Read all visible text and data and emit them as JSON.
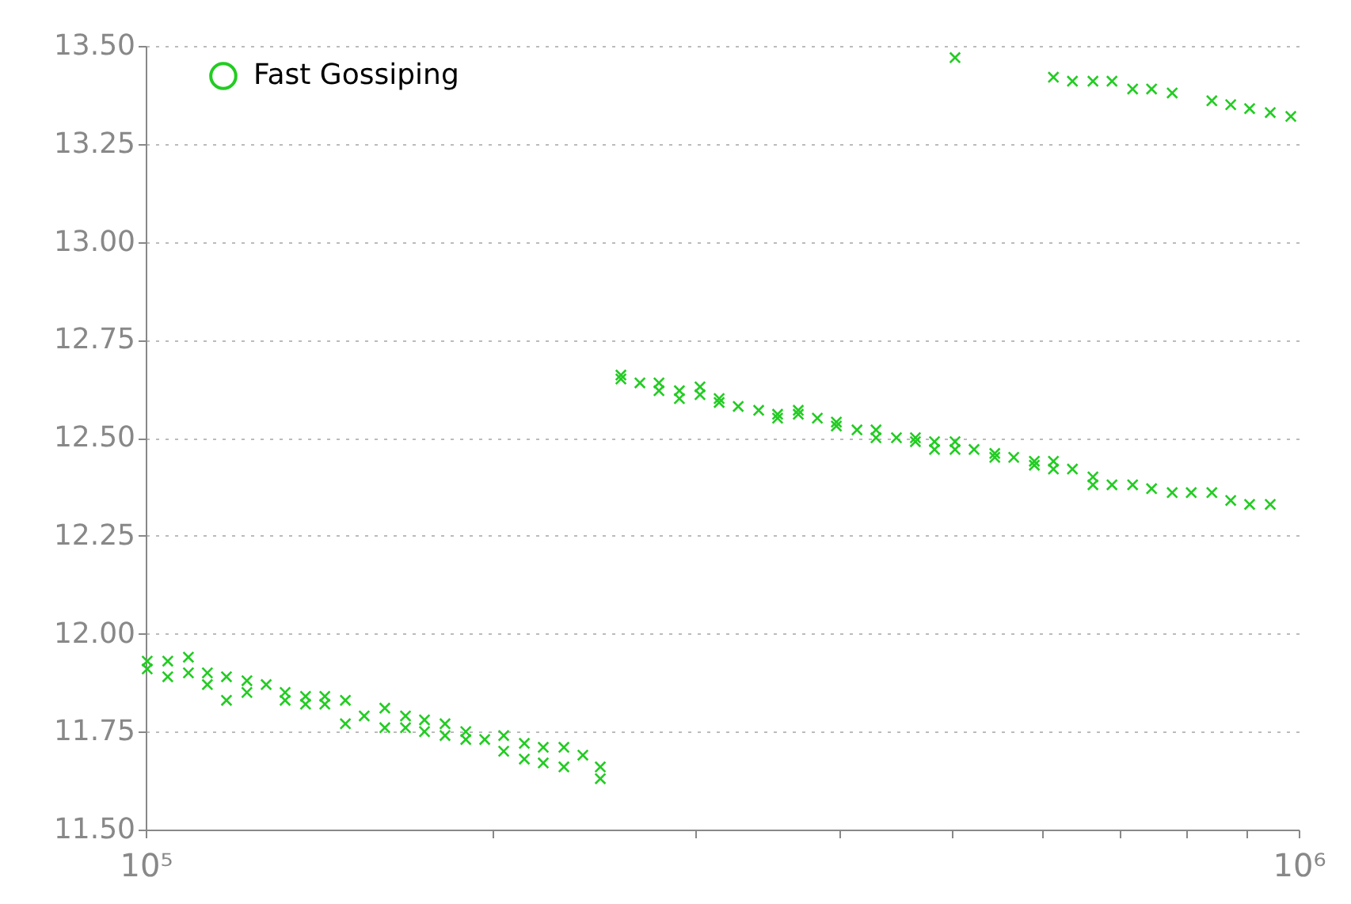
{
  "chart_data": {
    "type": "scatter",
    "log": "x",
    "marker": "cross",
    "grid": "y",
    "legend": "top left",
    "xlim": [
      100000,
      1000000
    ],
    "xticks": [
      {
        "value": 100000,
        "label": "10⁵"
      },
      {
        "value": 200000,
        "label": null
      },
      {
        "value": 300000,
        "label": null
      },
      {
        "value": 400000,
        "label": null
      },
      {
        "value": 500000,
        "label": null
      },
      {
        "value": 600000,
        "label": null
      },
      {
        "value": 700000,
        "label": null
      },
      {
        "value": 800000,
        "label": null
      },
      {
        "value": 900000,
        "label": null
      },
      {
        "value": 1000000,
        "label": "10⁶"
      }
    ],
    "ylim": [
      11.5,
      13.5
    ],
    "yticks": [
      {
        "value": 11.5,
        "label": "11.50"
      },
      {
        "value": 11.75,
        "label": "11.75"
      },
      {
        "value": 12,
        "label": "12.00"
      },
      {
        "value": 12.25,
        "label": "12.25"
      },
      {
        "value": 12.5,
        "label": "12.50"
      },
      {
        "value": 12.75,
        "label": "12.75"
      },
      {
        "value": 13,
        "label": "13.00"
      },
      {
        "value": 13.25,
        "label": "13.25"
      },
      {
        "value": 13.5,
        "label": "13.50"
      }
    ],
    "series": [
      {
        "name": "Fast Gossiping",
        "color": "#22cc22",
        "x": [
          100300,
          100300,
          104500,
          104500,
          108900,
          108900,
          113100,
          113100,
          117500,
          117500,
          122400,
          122400,
          127200,
          132100,
          132100,
          137600,
          137600,
          143000,
          143000,
          149000,
          149000,
          154700,
          161200,
          161200,
          168000,
          168000,
          174500,
          174500,
          181800,
          181800,
          189500,
          189500,
          196800,
          204400,
          204400,
          213000,
          213000,
          221200,
          221200,
          230500,
          230500,
          239400,
          247900,
          247900,
          258300,
          258300,
          268300,
          278700,
          278700,
          290300,
          290300,
          302500,
          302500,
          314300,
          314300,
          326500,
          340100,
          353200,
          353200,
          368100,
          368100,
          382400,
          397200,
          397200,
          413900,
          429900,
          429900,
          447800,
          465100,
          465100,
          483200,
          483200,
          503400,
          503400,
          522900,
          545000,
          545000,
          566000,
          589800,
          589800,
          612700,
          612700,
          636400,
          663000,
          663000,
          688700,
          717700,
          745400,
          776700,
          806800,
          840700,
          873000,
          906600,
          944700,
          503400,
          612700,
          636400,
          663000,
          688700,
          717700,
          745400,
          776700,
          840700,
          873000,
          906600,
          944700,
          984300
        ],
        "values": [
          11.93,
          11.91,
          11.93,
          11.89,
          11.94,
          11.9,
          11.9,
          11.87,
          11.89,
          11.83,
          11.88,
          11.85,
          11.87,
          11.85,
          11.83,
          11.84,
          11.82,
          11.84,
          11.82,
          11.83,
          11.77,
          11.79,
          11.81,
          11.76,
          11.79,
          11.76,
          11.78,
          11.75,
          11.77,
          11.74,
          11.75,
          11.73,
          11.73,
          11.74,
          11.7,
          11.72,
          11.68,
          11.71,
          11.67,
          11.71,
          11.66,
          11.69,
          11.66,
          11.63,
          12.66,
          12.65,
          12.64,
          12.64,
          12.62,
          12.62,
          12.6,
          12.63,
          12.61,
          12.6,
          12.59,
          12.58,
          12.57,
          12.56,
          12.55,
          12.57,
          12.56,
          12.55,
          12.54,
          12.53,
          12.52,
          12.52,
          12.5,
          12.5,
          12.5,
          12.49,
          12.49,
          12.47,
          12.49,
          12.47,
          12.47,
          12.46,
          12.45,
          12.45,
          12.44,
          12.43,
          12.44,
          12.42,
          12.42,
          12.4,
          12.38,
          12.38,
          12.38,
          12.37,
          12.36,
          12.36,
          12.36,
          12.34,
          12.33,
          12.33,
          13.47,
          13.42,
          13.41,
          13.41,
          13.41,
          13.39,
          13.39,
          13.38,
          13.36,
          13.35,
          13.34,
          13.33,
          13.32
        ]
      }
    ]
  }
}
